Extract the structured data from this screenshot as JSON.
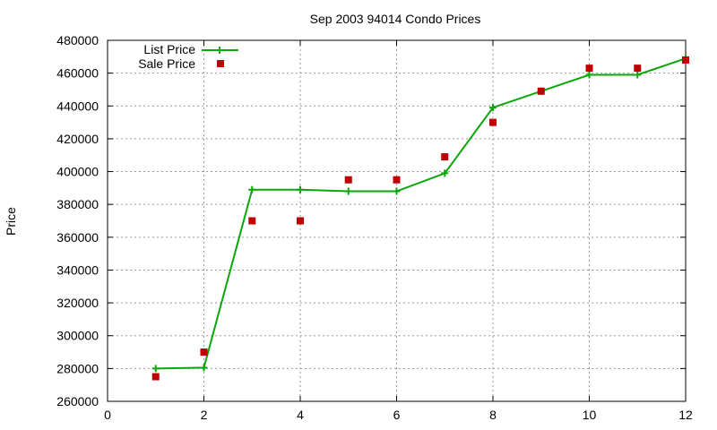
{
  "chart_data": {
    "type": "line",
    "title": "Sep 2003 94014 Condo Prices",
    "xlabel": "",
    "ylabel": "Price",
    "xlim": [
      0,
      12
    ],
    "ylim": [
      260000,
      480000
    ],
    "xticks": [
      0,
      2,
      4,
      6,
      8,
      10,
      12
    ],
    "yticks": [
      260000,
      280000,
      300000,
      320000,
      340000,
      360000,
      380000,
      400000,
      420000,
      440000,
      460000,
      480000
    ],
    "xtick_labels": [
      "0",
      "2",
      "4",
      "6",
      "8",
      "10",
      "12"
    ],
    "ytick_labels": [
      "260000",
      "280000",
      "300000",
      "320000",
      "340000",
      "360000",
      "380000",
      "400000",
      "420000",
      "440000",
      "460000",
      "480000"
    ],
    "grid": true,
    "legend_position": "top-left",
    "series": [
      {
        "name": "List Price",
        "style": "line+cross",
        "color": "#0aa70a",
        "x": [
          1,
          2,
          3,
          4,
          5,
          6,
          7,
          8,
          9,
          10,
          11,
          12
        ],
        "y": [
          280000,
          280500,
          389000,
          389000,
          388000,
          388000,
          399000,
          439000,
          449000,
          459000,
          459000,
          469000
        ]
      },
      {
        "name": "Sale Price",
        "style": "square",
        "color": "#c00000",
        "x": [
          1,
          2,
          3,
          4,
          5,
          6,
          7,
          8,
          9,
          10,
          11,
          12
        ],
        "y": [
          275000,
          290000,
          370000,
          370000,
          395000,
          395000,
          409000,
          430000,
          449000,
          463000,
          463000,
          468000
        ]
      }
    ]
  }
}
